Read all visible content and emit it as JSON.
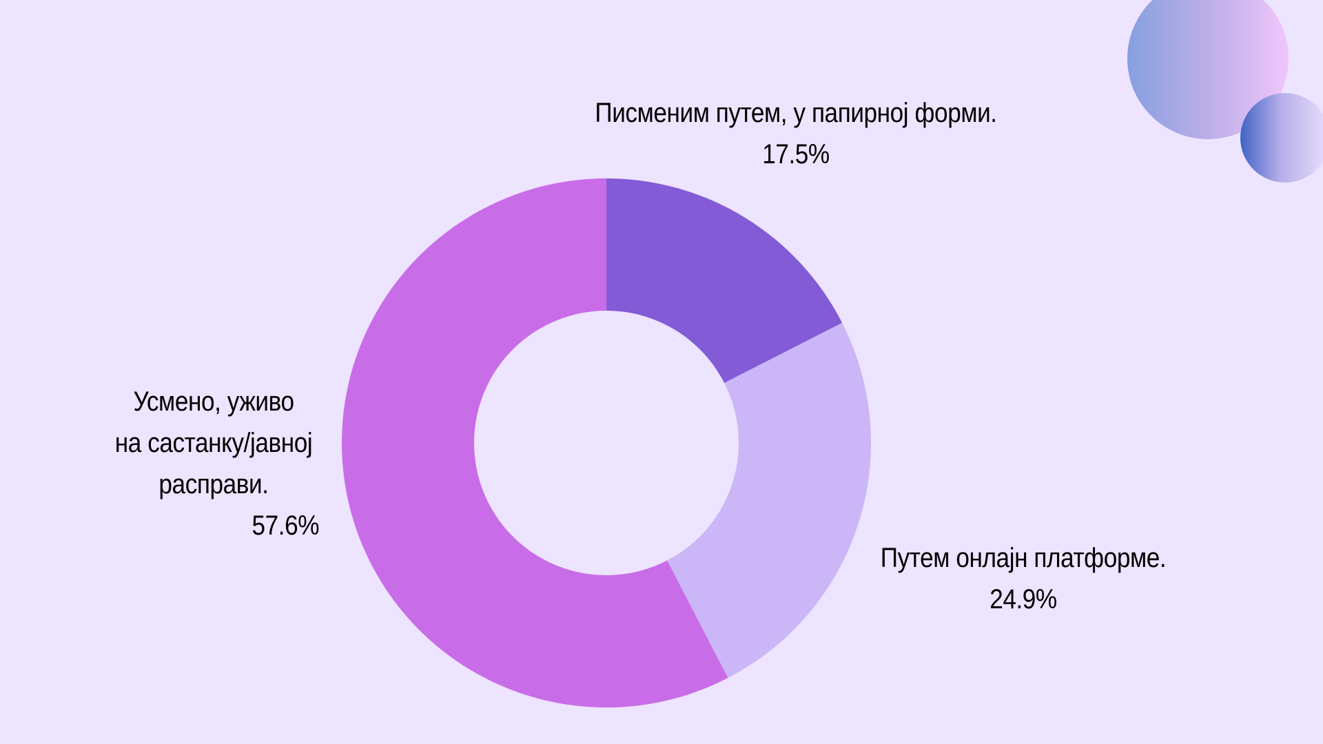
{
  "chart_data": {
    "type": "pie",
    "donut": true,
    "title": "",
    "slices": [
      {
        "lines": [
          "Писменим путем, у папирној форми."
        ],
        "value": 17.5,
        "value_label": "17.5%",
        "color": "#845BD6"
      },
      {
        "lines": [
          "Путем онлајн платформе."
        ],
        "value": 24.9,
        "value_label": "24.9%",
        "color": "#CBB6F7"
      },
      {
        "lines": [
          "Усмено, уживо",
          "на састанку/јавној",
          "расправи."
        ],
        "value": 57.6,
        "value_label": "57.6%",
        "color": "#C86DE7"
      }
    ]
  },
  "background_color": "#EDE4FF"
}
